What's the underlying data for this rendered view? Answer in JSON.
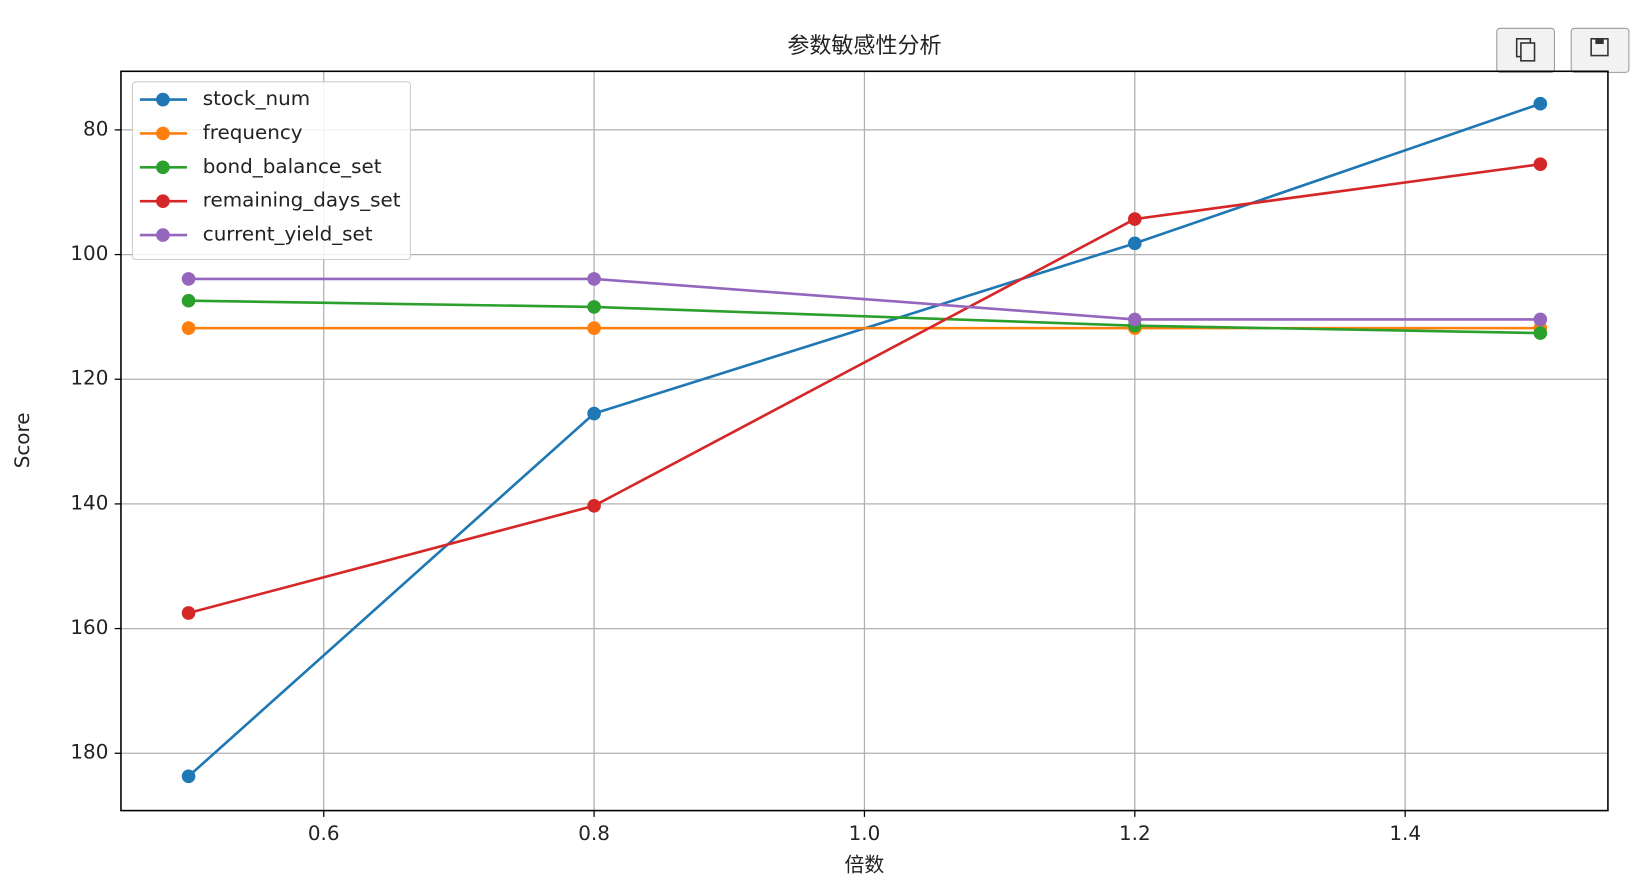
{
  "chart_data": {
    "type": "line",
    "title": "参数敏感性分析",
    "x_label": "倍数",
    "y_label": "Score",
    "x": [
      0.5,
      0.8,
      1.2,
      1.5
    ],
    "series": [
      {
        "name": "stock_num",
        "color": "#1f77b4",
        "values": [
          183.7,
          125.5,
          98.2,
          75.8
        ]
      },
      {
        "name": "frequency",
        "color": "#ff7f0e",
        "values": [
          111.8,
          111.8,
          111.8,
          111.8
        ]
      },
      {
        "name": "bond_balance_set",
        "color": "#2ca02c",
        "values": [
          107.4,
          108.4,
          111.4,
          112.6
        ]
      },
      {
        "name": "remaining_days_set",
        "color": "#d62728",
        "values": [
          157.5,
          140.3,
          94.3,
          85.5
        ]
      },
      {
        "name": "current_yield_set",
        "color": "#9467bd",
        "values": [
          103.9,
          103.9,
          110.4,
          110.4
        ]
      }
    ],
    "xlim": [
      0.45,
      1.55
    ],
    "ylim": [
      189.2,
      70.6
    ],
    "xticks": [
      0.6,
      0.8,
      {
        "value": 1,
        "label": "1.0"
      },
      1.2,
      1.4
    ],
    "yticks": [
      80,
      100,
      120,
      140,
      160,
      180
    ],
    "grid": true,
    "legend": "upper-left"
  }
}
